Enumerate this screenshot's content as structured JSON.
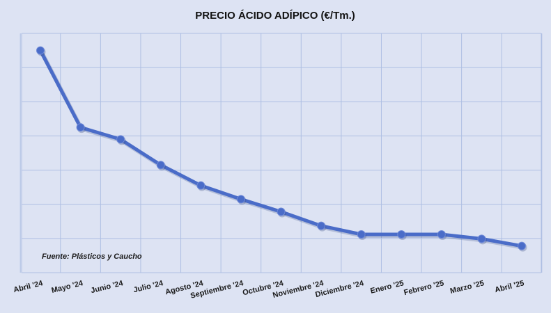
{
  "chart_data": {
    "type": "line",
    "title": "PRECIO ÁCIDO ADÍPICO (€/Tm.)",
    "source_note": "Fuente: Plásticos y Caucho",
    "xlabel": "",
    "ylabel": "",
    "categories": [
      "Abril '24",
      "Mayo '24",
      "Junio '24",
      "Julio '24",
      "Agosto '24",
      "Septiembre '24",
      "Octubre '24",
      "Noviembre '24",
      "Diciembre '24",
      "Enero '25",
      "Febrero '25",
      "Marzo '25",
      "Abril '25"
    ],
    "series": [
      {
        "values": [
          6.5,
          4.25,
          3.9,
          3.15,
          2.55,
          2.15,
          1.78,
          1.37,
          1.12,
          1.12,
          1.12,
          0.99,
          0.78
        ]
      }
    ],
    "ylim": [
      0,
      7
    ],
    "y_ticks_shown": false,
    "grid": true,
    "legend": "none",
    "line_color": "#4a6cc8",
    "grid_color": "#aebfe3"
  }
}
